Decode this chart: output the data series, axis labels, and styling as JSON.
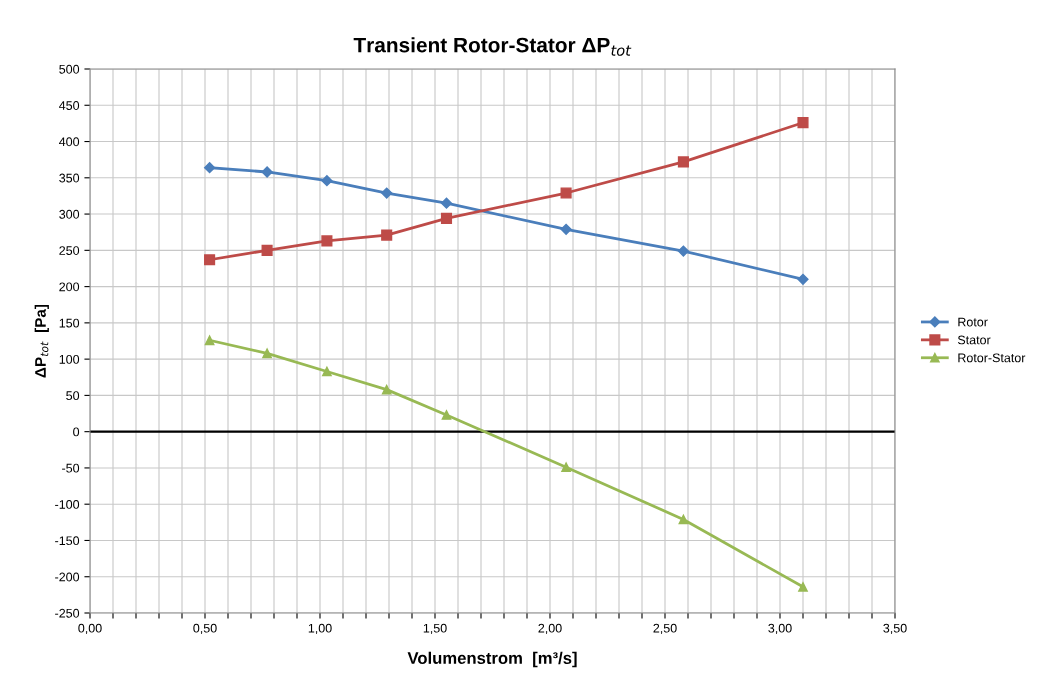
{
  "chart_data": {
    "type": "line",
    "title": "Transient Rotor-Stator ΔP$_{tot}$",
    "xlabel": "Volumenstrom  [m³/s]",
    "ylabel": "ΔP$_{tot}$  [Pa]",
    "x": [
      0.52,
      0.77,
      1.03,
      1.29,
      1.55,
      2.07,
      2.58,
      3.1
    ],
    "series": [
      {
        "name": "Rotor",
        "color": "#4a7ebb",
        "marker": "diamond",
        "values": [
          364,
          358,
          346,
          329,
          315,
          279,
          249,
          210
        ]
      },
      {
        "name": "Stator",
        "color": "#be4b48",
        "marker": "square",
        "values": [
          237,
          250,
          263,
          271,
          294,
          329,
          372,
          426
        ]
      },
      {
        "name": "Rotor-Stator",
        "color": "#98b954",
        "marker": "triangle",
        "values": [
          126,
          108,
          83,
          58,
          23,
          -49,
          -121,
          -214
        ]
      }
    ],
    "xlim": [
      0,
      3.5
    ],
    "xticks": [
      {
        "value": 0,
        "label": "0,00"
      },
      {
        "value": 0.1,
        "label": null
      },
      {
        "value": 0.2,
        "label": null
      },
      {
        "value": 0.3,
        "label": null
      },
      {
        "value": 0.4,
        "label": null
      },
      {
        "value": 0.5,
        "label": "0,50"
      },
      {
        "value": 0.6,
        "label": null
      },
      {
        "value": 0.7,
        "label": null
      },
      {
        "value": 0.8,
        "label": null
      },
      {
        "value": 0.9,
        "label": null
      },
      {
        "value": 1.0,
        "label": "1,00"
      },
      {
        "value": 1.1,
        "label": null
      },
      {
        "value": 1.2,
        "label": null
      },
      {
        "value": 1.3,
        "label": null
      },
      {
        "value": 1.4,
        "label": null
      },
      {
        "value": 1.5,
        "label": "1,50"
      },
      {
        "value": 1.6,
        "label": null
      },
      {
        "value": 1.7,
        "label": null
      },
      {
        "value": 1.8,
        "label": null
      },
      {
        "value": 1.9,
        "label": null
      },
      {
        "value": 2.0,
        "label": "2,00"
      },
      {
        "value": 2.1,
        "label": null
      },
      {
        "value": 2.2,
        "label": null
      },
      {
        "value": 2.3,
        "label": null
      },
      {
        "value": 2.4,
        "label": null
      },
      {
        "value": 2.5,
        "label": "2,50"
      },
      {
        "value": 2.6,
        "label": null
      },
      {
        "value": 2.7,
        "label": null
      },
      {
        "value": 2.8,
        "label": null
      },
      {
        "value": 2.9,
        "label": null
      },
      {
        "value": 3.0,
        "label": "3,00"
      },
      {
        "value": 3.1,
        "label": null
      },
      {
        "value": 3.2,
        "label": null
      },
      {
        "value": 3.3,
        "label": null
      },
      {
        "value": 3.4,
        "label": null
      },
      {
        "value": 3.5,
        "label": "3,50"
      }
    ],
    "ylim": [
      -250,
      500
    ],
    "yticks": [
      -250,
      -200,
      -150,
      -100,
      -50,
      0,
      50,
      100,
      150,
      200,
      250,
      300,
      350,
      400,
      450,
      500
    ],
    "ref_lines": [
      {
        "axis": "y",
        "value": 0,
        "color": "#000000"
      }
    ],
    "grid": true,
    "legend": "right",
    "line_style": "solid"
  }
}
